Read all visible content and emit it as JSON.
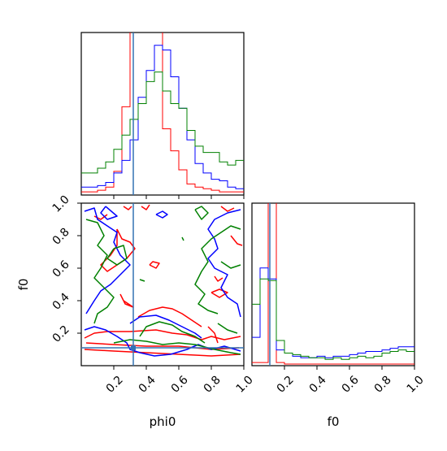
{
  "chart_data": {
    "type": "corner",
    "params": [
      "phi0",
      "f0"
    ],
    "axis_ticks": [
      "0.2",
      "0.4",
      "0.6",
      "0.8",
      "1.0"
    ],
    "xlim": [
      0,
      1
    ],
    "ylim": [
      0,
      1
    ],
    "truth": {
      "phi0": 0.32,
      "f0": 0.11,
      "color": "#3472b4"
    },
    "series": [
      {
        "color": "#ff0000"
      },
      {
        "color": "#0000ff"
      },
      {
        "color": "#008000"
      }
    ],
    "hist_phi0": {
      "bins": 20,
      "counts": [
        [
          0.02,
          0.02,
          0.03,
          0.05,
          0.15,
          0.56,
          1.1,
          1.35,
          1.3,
          1.1,
          0.42,
          0.28,
          0.16,
          0.07,
          0.05,
          0.04,
          0.03,
          0.02,
          0.02,
          0.02
        ],
        [
          0.05,
          0.05,
          0.06,
          0.08,
          0.14,
          0.22,
          0.35,
          0.62,
          0.79,
          0.95,
          0.92,
          0.75,
          0.55,
          0.35,
          0.2,
          0.14,
          0.1,
          0.09,
          0.05,
          0.04
        ],
        [
          0.14,
          0.14,
          0.17,
          0.21,
          0.29,
          0.38,
          0.48,
          0.58,
          0.72,
          0.78,
          0.66,
          0.58,
          0.55,
          0.41,
          0.31,
          0.27,
          0.27,
          0.21,
          0.19,
          0.22
        ]
      ]
    },
    "hist_f0": {
      "bins": 20,
      "counts": [
        [
          0.02,
          0.02,
          1.3,
          0.02,
          0.01,
          0.01,
          0.01,
          0.01,
          0.01,
          0.01,
          0.01,
          0.01,
          0.01,
          0.01,
          0.01,
          0.01,
          0.01,
          0.01,
          0.01,
          0.01
        ],
        [
          0.18,
          0.62,
          0.55,
          0.1,
          0.08,
          0.06,
          0.05,
          0.05,
          0.06,
          0.05,
          0.06,
          0.06,
          0.07,
          0.08,
          0.09,
          0.09,
          0.1,
          0.11,
          0.12,
          0.12
        ],
        [
          0.39,
          0.55,
          0.54,
          0.16,
          0.08,
          0.07,
          0.06,
          0.05,
          0.05,
          0.04,
          0.05,
          0.04,
          0.05,
          0.06,
          0.05,
          0.06,
          0.08,
          0.09,
          0.1,
          0.09
        ]
      ]
    },
    "contours": [
      {
        "series": 0,
        "points": [
          [
            0.02,
            0.17
          ],
          [
            0.08,
            0.2
          ],
          [
            0.16,
            0.21
          ],
          [
            0.3,
            0.21
          ],
          [
            0.46,
            0.22
          ],
          [
            0.56,
            0.2
          ],
          [
            0.65,
            0.19
          ],
          [
            0.74,
            0.16
          ],
          [
            0.8,
            0.18
          ],
          [
            0.88,
            0.16
          ],
          [
            0.98,
            0.18
          ]
        ]
      },
      {
        "series": 0,
        "points": [
          [
            0.02,
            0.1
          ],
          [
            0.2,
            0.09
          ],
          [
            0.4,
            0.08
          ],
          [
            0.6,
            0.07
          ],
          [
            0.8,
            0.06
          ],
          [
            0.98,
            0.07
          ]
        ]
      },
      {
        "series": 0,
        "points": [
          [
            0.03,
            0.14
          ],
          [
            0.2,
            0.13
          ],
          [
            0.4,
            0.12
          ],
          [
            0.6,
            0.12
          ],
          [
            0.8,
            0.1
          ],
          [
            0.97,
            0.11
          ]
        ]
      },
      {
        "series": 0,
        "points": [
          [
            0.35,
            0.3
          ],
          [
            0.42,
            0.34
          ],
          [
            0.5,
            0.36
          ],
          [
            0.56,
            0.35
          ],
          [
            0.62,
            0.32
          ],
          [
            0.68,
            0.28
          ],
          [
            0.74,
            0.24
          ]
        ]
      },
      {
        "series": 0,
        "points": [
          [
            0.22,
            0.84
          ],
          [
            0.25,
            0.78
          ],
          [
            0.3,
            0.76
          ],
          [
            0.33,
            0.72
          ],
          [
            0.28,
            0.66
          ],
          [
            0.22,
            0.62
          ],
          [
            0.16,
            0.58
          ],
          [
            0.12,
            0.62
          ],
          [
            0.18,
            0.68
          ],
          [
            0.22,
            0.74
          ],
          [
            0.22,
            0.84
          ]
        ]
      },
      {
        "series": 0,
        "points": [
          [
            0.08,
            0.92
          ],
          [
            0.12,
            0.9
          ],
          [
            0.16,
            0.93
          ]
        ]
      },
      {
        "series": 0,
        "points": [
          [
            0.24,
            0.44
          ],
          [
            0.27,
            0.38
          ],
          [
            0.32,
            0.36
          ],
          [
            0.26,
            0.4
          ],
          [
            0.24,
            0.44
          ]
        ]
      },
      {
        "series": 0,
        "points": [
          [
            0.42,
            0.62
          ],
          [
            0.46,
            0.6
          ],
          [
            0.48,
            0.63
          ],
          [
            0.44,
            0.64
          ],
          [
            0.42,
            0.62
          ]
        ]
      },
      {
        "series": 0,
        "points": [
          [
            0.26,
            0.98
          ],
          [
            0.29,
            0.96
          ],
          [
            0.31,
            0.98
          ]
        ]
      },
      {
        "series": 0,
        "points": [
          [
            0.37,
            0.98
          ],
          [
            0.4,
            0.96
          ],
          [
            0.42,
            0.99
          ]
        ]
      },
      {
        "series": 0,
        "points": [
          [
            0.8,
            0.45
          ],
          [
            0.85,
            0.42
          ],
          [
            0.9,
            0.45
          ],
          [
            0.85,
            0.47
          ],
          [
            0.8,
            0.45
          ]
        ]
      },
      {
        "series": 0,
        "points": [
          [
            0.82,
            0.55
          ],
          [
            0.84,
            0.52
          ],
          [
            0.87,
            0.54
          ]
        ]
      },
      {
        "series": 0,
        "points": [
          [
            0.92,
            0.8
          ],
          [
            0.96,
            0.75
          ],
          [
            0.99,
            0.74
          ]
        ]
      },
      {
        "series": 0,
        "points": [
          [
            0.86,
            0.98
          ],
          [
            0.9,
            0.95
          ],
          [
            0.94,
            0.97
          ]
        ]
      },
      {
        "series": 0,
        "points": [
          [
            0.78,
            0.24
          ],
          [
            0.82,
            0.2
          ],
          [
            0.84,
            0.14
          ]
        ]
      },
      {
        "series": 1,
        "points": [
          [
            0.02,
            0.22
          ],
          [
            0.08,
            0.24
          ],
          [
            0.15,
            0.22
          ],
          [
            0.22,
            0.18
          ],
          [
            0.28,
            0.14
          ],
          [
            0.3,
            0.1
          ],
          [
            0.36,
            0.08
          ],
          [
            0.45,
            0.06
          ],
          [
            0.55,
            0.07
          ],
          [
            0.65,
            0.1
          ],
          [
            0.72,
            0.13
          ],
          [
            0.8,
            0.1
          ],
          [
            0.88,
            0.12
          ],
          [
            0.98,
            0.09
          ]
        ]
      },
      {
        "series": 1,
        "points": [
          [
            0.3,
            0.26
          ],
          [
            0.36,
            0.3
          ],
          [
            0.46,
            0.31
          ],
          [
            0.54,
            0.28
          ],
          [
            0.62,
            0.24
          ],
          [
            0.7,
            0.2
          ],
          [
            0.74,
            0.17
          ]
        ]
      },
      {
        "series": 1,
        "points": [
          [
            0.02,
            0.95
          ],
          [
            0.08,
            0.97
          ],
          [
            0.1,
            0.9
          ],
          [
            0.16,
            0.86
          ],
          [
            0.22,
            0.82
          ],
          [
            0.2,
            0.76
          ],
          [
            0.24,
            0.68
          ],
          [
            0.3,
            0.62
          ],
          [
            0.24,
            0.56
          ],
          [
            0.18,
            0.5
          ],
          [
            0.12,
            0.46
          ],
          [
            0.08,
            0.4
          ],
          [
            0.03,
            0.32
          ]
        ]
      },
      {
        "series": 1,
        "points": [
          [
            0.15,
            0.98
          ],
          [
            0.12,
            0.94
          ],
          [
            0.16,
            0.9
          ],
          [
            0.22,
            0.92
          ],
          [
            0.15,
            0.98
          ]
        ]
      },
      {
        "series": 1,
        "points": [
          [
            0.46,
            0.93
          ],
          [
            0.5,
            0.91
          ],
          [
            0.53,
            0.93
          ],
          [
            0.5,
            0.95
          ],
          [
            0.46,
            0.93
          ]
        ]
      },
      {
        "series": 1,
        "points": [
          [
            0.98,
            0.96
          ],
          [
            0.9,
            0.94
          ],
          [
            0.82,
            0.9
          ],
          [
            0.78,
            0.84
          ],
          [
            0.82,
            0.78
          ],
          [
            0.84,
            0.72
          ],
          [
            0.78,
            0.66
          ],
          [
            0.82,
            0.6
          ],
          [
            0.9,
            0.56
          ],
          [
            0.86,
            0.48
          ],
          [
            0.9,
            0.42
          ],
          [
            0.96,
            0.38
          ],
          [
            0.98,
            0.3
          ]
        ]
      },
      {
        "series": 2,
        "points": [
          [
            0.03,
            0.9
          ],
          [
            0.1,
            0.88
          ],
          [
            0.14,
            0.8
          ],
          [
            0.1,
            0.74
          ],
          [
            0.16,
            0.68
          ],
          [
            0.12,
            0.6
          ],
          [
            0.08,
            0.54
          ],
          [
            0.14,
            0.48
          ],
          [
            0.2,
            0.42
          ],
          [
            0.16,
            0.36
          ],
          [
            0.1,
            0.32
          ],
          [
            0.08,
            0.26
          ]
        ]
      },
      {
        "series": 2,
        "points": [
          [
            0.2,
            0.72
          ],
          [
            0.26,
            0.74
          ],
          [
            0.28,
            0.66
          ],
          [
            0.22,
            0.62
          ],
          [
            0.16,
            0.66
          ],
          [
            0.2,
            0.72
          ]
        ]
      },
      {
        "series": 2,
        "points": [
          [
            0.36,
            0.18
          ],
          [
            0.4,
            0.24
          ],
          [
            0.48,
            0.27
          ],
          [
            0.56,
            0.25
          ],
          [
            0.62,
            0.21
          ],
          [
            0.7,
            0.18
          ],
          [
            0.76,
            0.14
          ]
        ]
      },
      {
        "series": 2,
        "points": [
          [
            0.2,
            0.14
          ],
          [
            0.3,
            0.16
          ],
          [
            0.4,
            0.15
          ],
          [
            0.5,
            0.13
          ],
          [
            0.6,
            0.14
          ],
          [
            0.7,
            0.13
          ],
          [
            0.82,
            0.1
          ],
          [
            0.92,
            0.08
          ],
          [
            0.98,
            0.07
          ]
        ]
      },
      {
        "series": 2,
        "points": [
          [
            0.98,
            0.84
          ],
          [
            0.92,
            0.86
          ],
          [
            0.86,
            0.82
          ],
          [
            0.8,
            0.78
          ],
          [
            0.74,
            0.72
          ],
          [
            0.78,
            0.64
          ],
          [
            0.74,
            0.58
          ],
          [
            0.7,
            0.5
          ],
          [
            0.76,
            0.44
          ],
          [
            0.72,
            0.38
          ],
          [
            0.78,
            0.34
          ],
          [
            0.84,
            0.32
          ]
        ]
      },
      {
        "series": 2,
        "points": [
          [
            0.7,
            0.96
          ],
          [
            0.74,
            0.9
          ],
          [
            0.78,
            0.94
          ],
          [
            0.74,
            0.98
          ],
          [
            0.7,
            0.96
          ]
        ]
      },
      {
        "series": 2,
        "points": [
          [
            0.62,
            0.79
          ],
          [
            0.63,
            0.77
          ]
        ]
      },
      {
        "series": 2,
        "points": [
          [
            0.36,
            0.53
          ],
          [
            0.39,
            0.52
          ]
        ]
      },
      {
        "series": 2,
        "points": [
          [
            0.86,
            0.64
          ],
          [
            0.92,
            0.6
          ],
          [
            0.98,
            0.62
          ]
        ]
      },
      {
        "series": 2,
        "points": [
          [
            0.84,
            0.26
          ],
          [
            0.9,
            0.22
          ],
          [
            0.96,
            0.2
          ]
        ]
      }
    ]
  }
}
